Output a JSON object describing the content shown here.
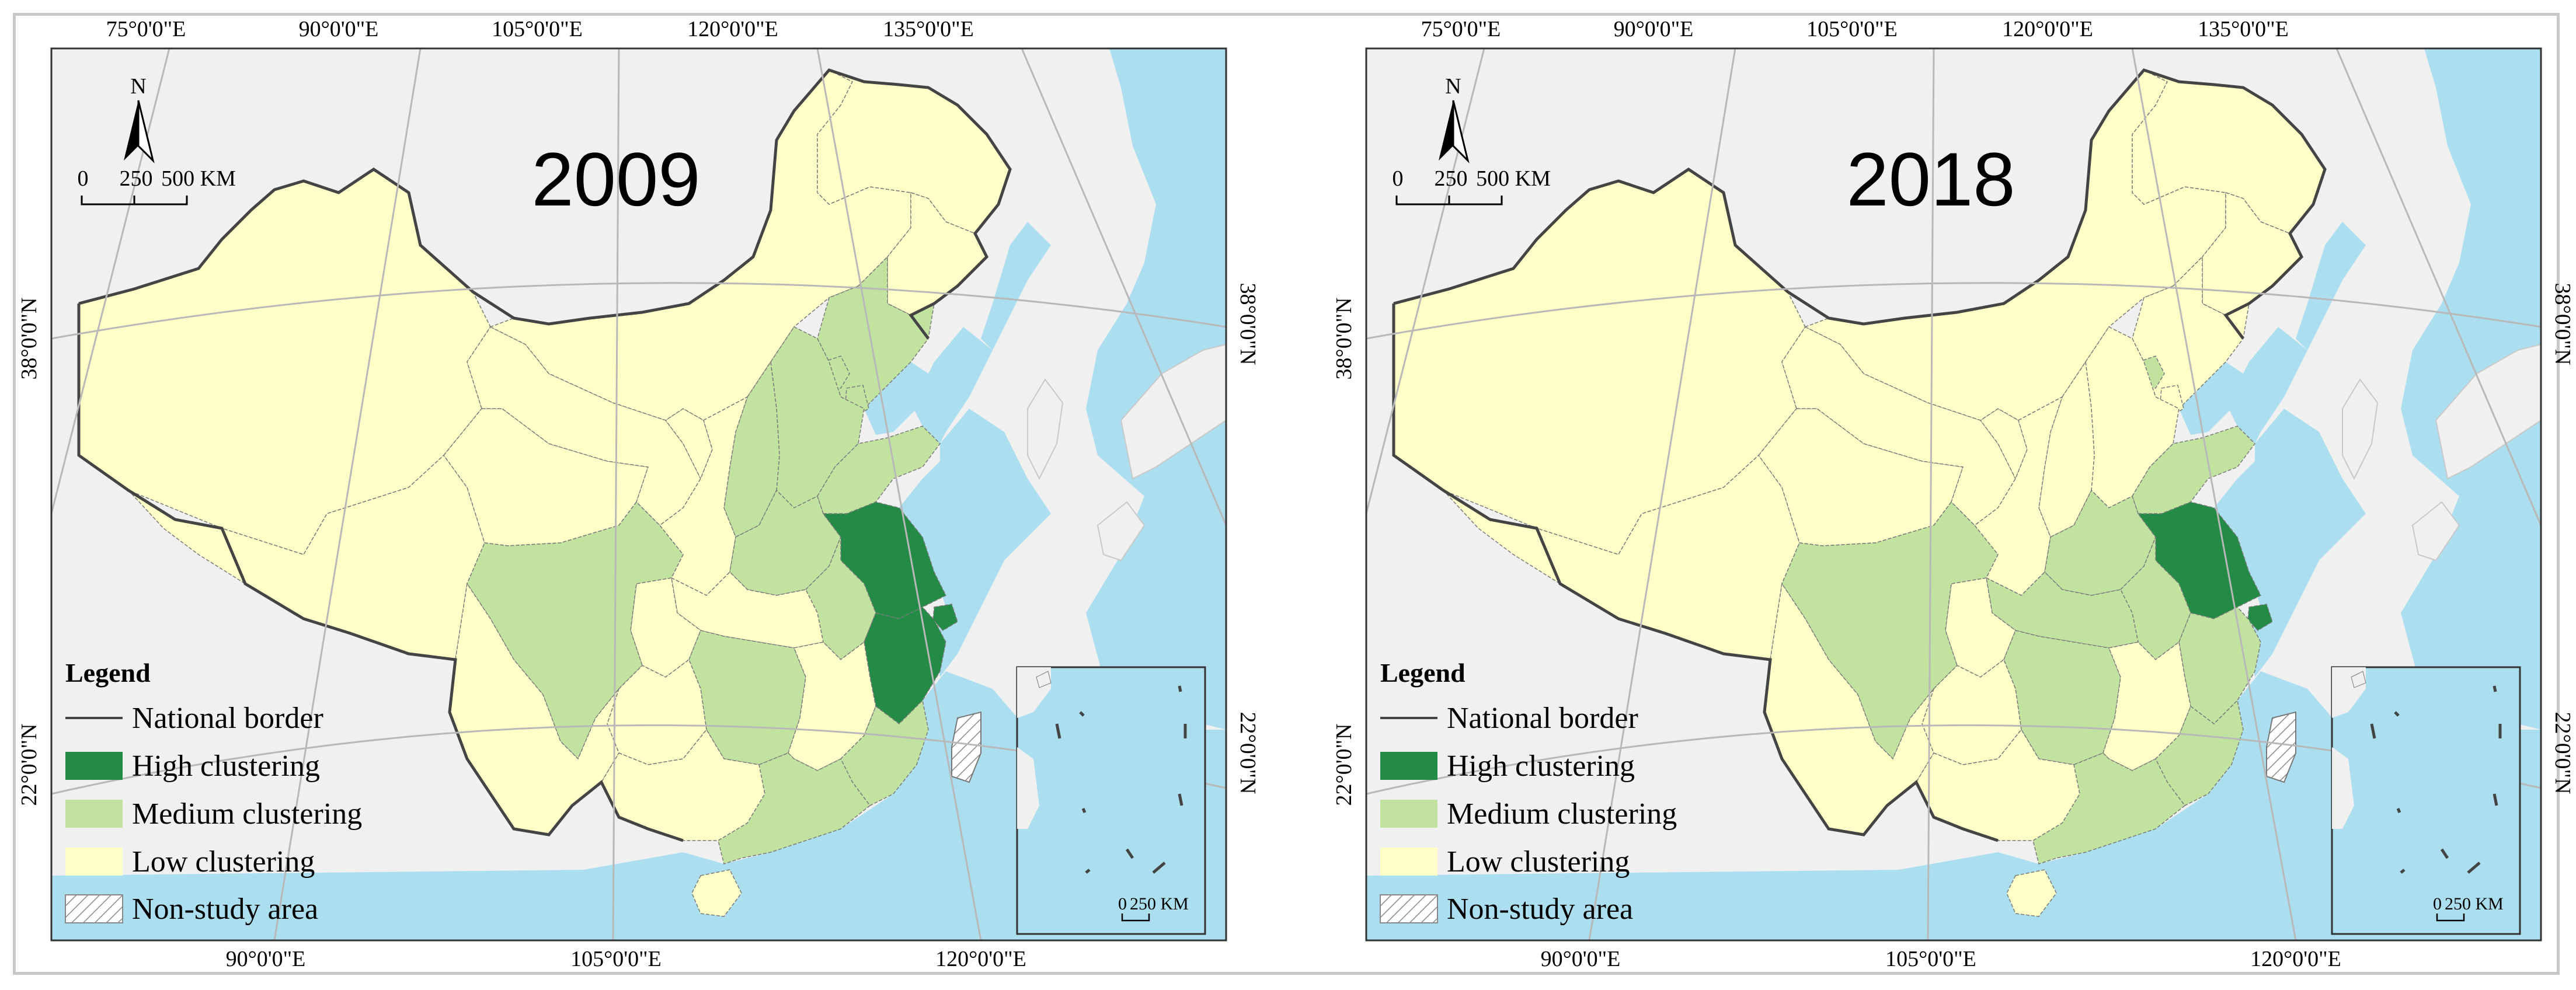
{
  "panels": [
    {
      "id": "left",
      "year": "2009",
      "provinces": {
        "xinjiang": "low",
        "tibet": "low",
        "qinghai": "low",
        "gansu": "low",
        "neimenggu": "low",
        "heilongjiang": "low",
        "jilin": "low",
        "liaoning": "medium",
        "hebei": "medium",
        "beijing": "medium",
        "tianjin": "medium",
        "shanxi": "medium",
        "shandong": "medium",
        "henan": "medium",
        "jiangsu": "high",
        "shanghai": "high",
        "zhejiang": "high",
        "anhui": "medium",
        "sichuan": "medium",
        "hunan": "medium",
        "fujian": "medium",
        "guangdong": "medium",
        "ningxia": "low",
        "shaanxi": "low",
        "chongqing": "low",
        "hubei": "low",
        "jiangxi": "low",
        "guizhou": "low",
        "yunnan": "low",
        "guangxi": "low",
        "hainan": "low",
        "taiwan": "nonstudy"
      }
    },
    {
      "id": "right",
      "year": "2018",
      "provinces": {
        "xinjiang": "low",
        "tibet": "low",
        "qinghai": "low",
        "gansu": "low",
        "neimenggu": "low",
        "heilongjiang": "low",
        "jilin": "low",
        "liaoning": "low",
        "hebei": "low",
        "beijing": "medium",
        "tianjin": "low",
        "shanxi": "low",
        "shandong": "medium",
        "henan": "medium",
        "jiangsu": "high",
        "shanghai": "high",
        "zhejiang": "medium",
        "anhui": "medium",
        "sichuan": "medium",
        "hunan": "medium",
        "fujian": "medium",
        "guangdong": "medium",
        "ningxia": "low",
        "shaanxi": "low",
        "chongqing": "low",
        "hubei": "medium",
        "jiangxi": "low",
        "guizhou": "low",
        "yunnan": "low",
        "guangxi": "low",
        "hainan": "low",
        "taiwan": "nonstudy"
      }
    }
  ],
  "graticule": {
    "top_labels": [
      "75°0'0\"E",
      "90°0'0\"E",
      "105°0'0\"E",
      "120°0'0\"E",
      "135°0'0\"E"
    ],
    "bottom_labels": [
      "90°0'0\"E",
      "105°0'0\"E",
      "120°0'0\"E"
    ],
    "left_labels": [
      "38°0'0\"N",
      "22°0'0\"N"
    ],
    "right_labels": [
      "38°0'0\"N",
      "22°0'0\"N"
    ]
  },
  "north_arrow": "N",
  "scale_bar": {
    "ticks": [
      "0",
      "250",
      "500 KM"
    ]
  },
  "inset_scale": {
    "ticks": [
      "0",
      "250 KM"
    ]
  },
  "legend": {
    "title": "Legend",
    "items": [
      {
        "key": "border",
        "label": "National border"
      },
      {
        "key": "high",
        "label": "High clustering",
        "color": "#238b45"
      },
      {
        "key": "medium",
        "label": "Medium clustering",
        "color": "#c2e3a0"
      },
      {
        "key": "low",
        "label": "Low clustering",
        "color": "#ffffc8"
      },
      {
        "key": "nonstudy",
        "label": "Non-study area"
      }
    ]
  },
  "colors": {
    "sea": "#abdff0",
    "neighbor": "#f0f0f0",
    "high": "#238b45",
    "medium": "#c2e3a0",
    "low": "#ffffc8",
    "graticule": "#b8b8b8",
    "border": "#555555"
  }
}
